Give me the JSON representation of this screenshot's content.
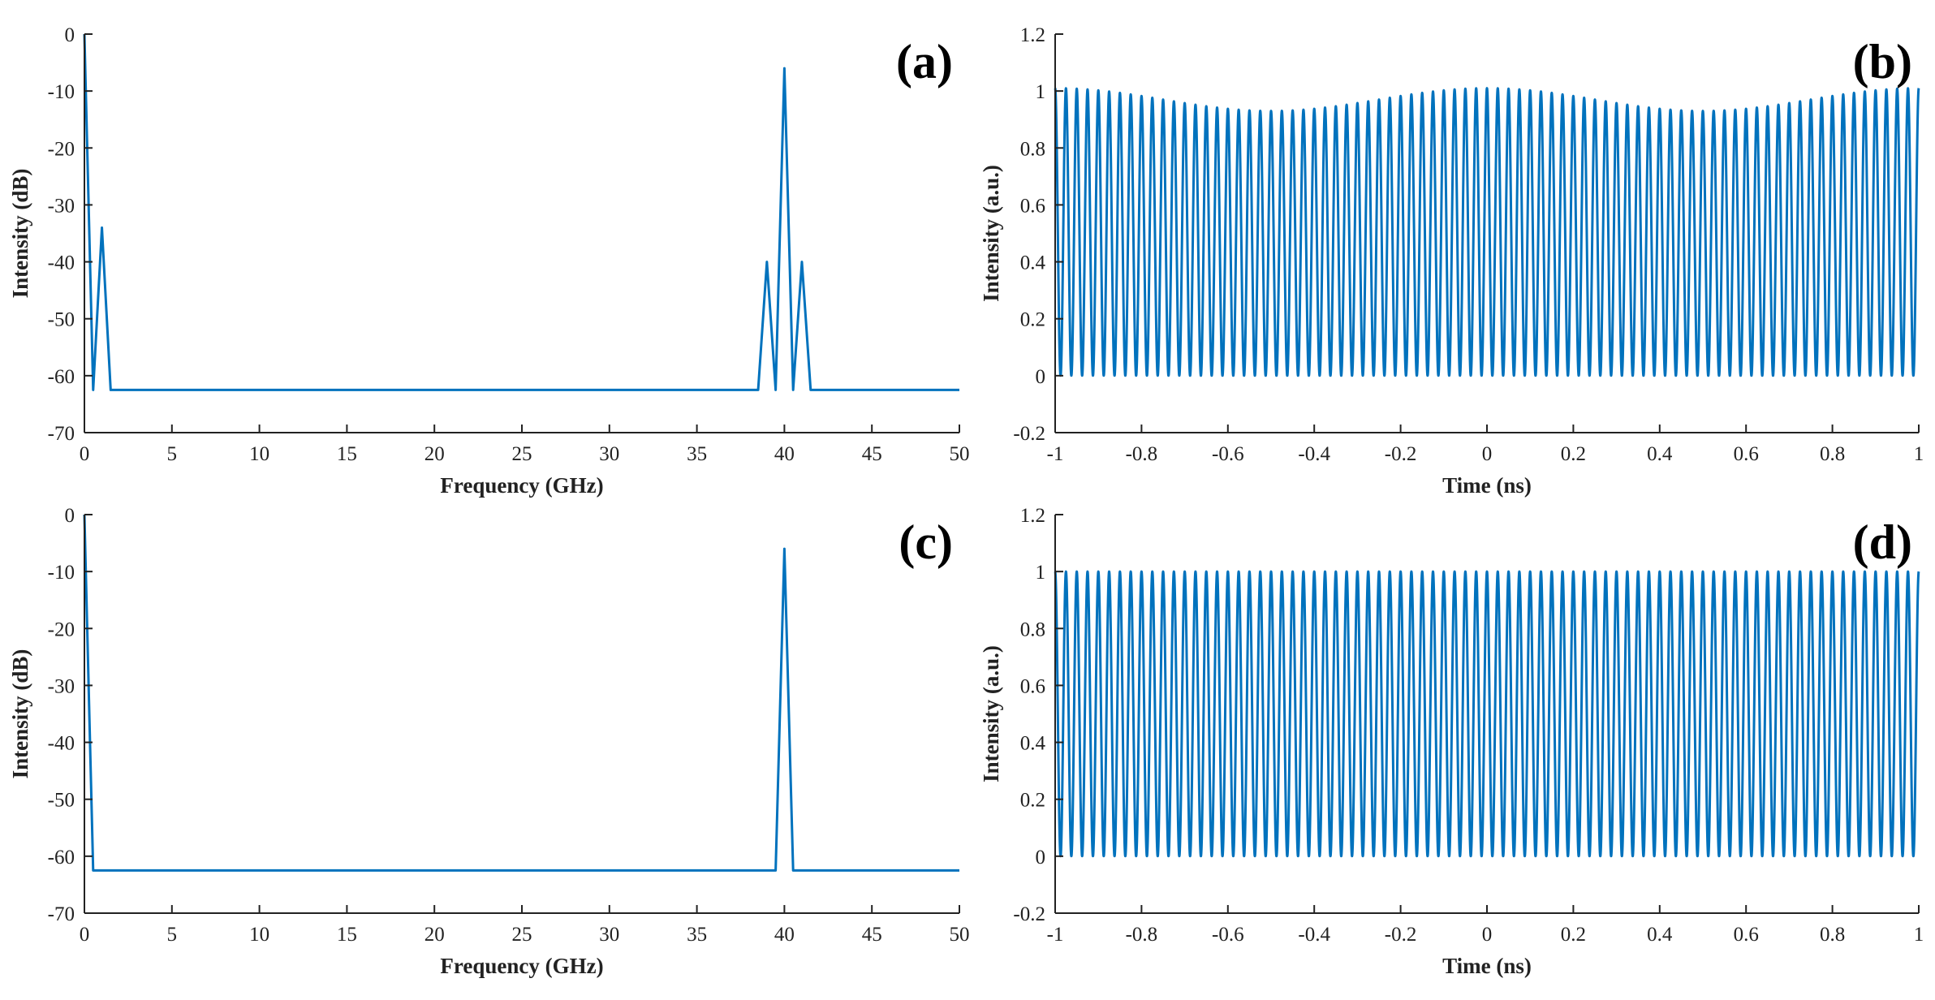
{
  "chart_data": [
    {
      "id": "a",
      "type": "line",
      "panel_label": "(a)",
      "xlabel": "Frequency (GHz)",
      "ylabel": "Intensity (dB)",
      "xlim": [
        0,
        50
      ],
      "ylim": [
        -70,
        0
      ],
      "xticks": [
        0,
        5,
        10,
        15,
        20,
        25,
        30,
        35,
        40,
        45,
        50
      ],
      "yticks": [
        0,
        -10,
        -20,
        -30,
        -40,
        -50,
        -60,
        -70
      ],
      "grid": false,
      "color": "#0072BD",
      "series": [
        {
          "x": [
            0,
            0.5,
            1,
            1.5,
            38.5,
            39,
            39.5,
            40,
            40.5,
            41,
            41.5,
            50
          ],
          "y": [
            0,
            -62.5,
            -34,
            -62.5,
            -62.5,
            -40,
            -62.5,
            -6,
            -62.5,
            -40,
            -62.5,
            -62.5
          ]
        }
      ]
    },
    {
      "id": "b",
      "type": "line",
      "panel_label": "(b)",
      "xlabel": "Time (ns)",
      "ylabel": "Intensity (a.u.)",
      "xlim": [
        -1,
        1
      ],
      "ylim": [
        -0.2,
        1.2
      ],
      "xticks": [
        -1,
        -0.8,
        -0.6,
        -0.4,
        -0.2,
        0,
        0.2,
        0.4,
        0.6,
        0.8,
        1
      ],
      "yticks": [
        1.2,
        1,
        0.8,
        0.6,
        0.4,
        0.2,
        0,
        -0.2
      ],
      "grid": false,
      "color": "#0072BD",
      "signal": {
        "carrier_frequency_GHz": 40,
        "envelope_max": 1.01,
        "envelope_min": 0.93,
        "envelope_period_ns": 1,
        "trough_value": 0
      }
    },
    {
      "id": "c",
      "type": "line",
      "panel_label": "(c)",
      "xlabel": "Frequency (GHz)",
      "ylabel": "Intensity (dB)",
      "xlim": [
        0,
        50
      ],
      "ylim": [
        -70,
        0
      ],
      "xticks": [
        0,
        5,
        10,
        15,
        20,
        25,
        30,
        35,
        40,
        45,
        50
      ],
      "yticks": [
        0,
        -10,
        -20,
        -30,
        -40,
        -50,
        -60,
        -70
      ],
      "grid": false,
      "color": "#0072BD",
      "series": [
        {
          "x": [
            0,
            0.5,
            39.5,
            40,
            40.5,
            50
          ],
          "y": [
            0,
            -62.5,
            -62.5,
            -6,
            -62.5,
            -62.5
          ]
        }
      ]
    },
    {
      "id": "d",
      "type": "line",
      "panel_label": "(d)",
      "xlabel": "Time (ns)",
      "ylabel": "Intensity (a.u.)",
      "xlim": [
        -1,
        1
      ],
      "ylim": [
        -0.2,
        1.2
      ],
      "xticks": [
        -1,
        -0.8,
        -0.6,
        -0.4,
        -0.2,
        0,
        0.2,
        0.4,
        0.6,
        0.8,
        1
      ],
      "yticks": [
        1.2,
        1,
        0.8,
        0.6,
        0.4,
        0.2,
        0,
        -0.2
      ],
      "grid": false,
      "color": "#0072BD",
      "signal": {
        "carrier_frequency_GHz": 40,
        "envelope_max": 1.0,
        "envelope_min": 1.0,
        "envelope_period_ns": 1,
        "trough_value": 0
      }
    }
  ]
}
